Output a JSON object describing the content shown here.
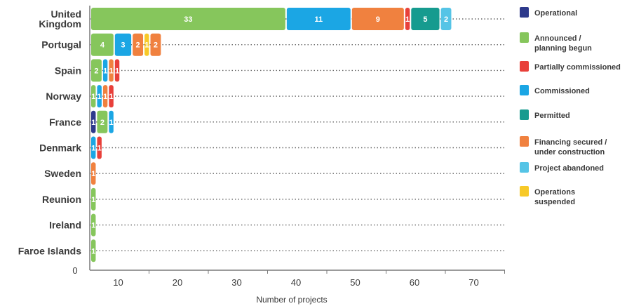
{
  "chart_data": {
    "type": "bar",
    "orientation": "horizontal",
    "stacked": true,
    "xlabel": "Number of projects",
    "xlim": [
      0,
      70
    ],
    "x_ticks": [
      10,
      20,
      30,
      40,
      50,
      60,
      70
    ],
    "y_zero_label": "0",
    "grid": "dotted horizontal",
    "legend_position": "right",
    "categories": [
      [
        "United",
        "Kingdom"
      ],
      [
        "Portugal"
      ],
      [
        "Spain"
      ],
      [
        "Norway"
      ],
      [
        "France"
      ],
      [
        "Denmark"
      ],
      [
        "Sweden"
      ],
      [
        "Reunion"
      ],
      [
        "Ireland"
      ],
      [
        "Faroe Islands"
      ]
    ],
    "legend": [
      {
        "key": "operational",
        "label": [
          "Operational"
        ],
        "color": "#2e3a8c"
      },
      {
        "key": "announced",
        "label": [
          "Announced /",
          "planning begun"
        ],
        "color": "#86c65c"
      },
      {
        "key": "partially",
        "label": [
          "Partially commissioned"
        ],
        "color": "#e8403a"
      },
      {
        "key": "commissioned",
        "label": [
          "Commissioned"
        ],
        "color": "#1ba6e4"
      },
      {
        "key": "permitted",
        "label": [
          "Permitted"
        ],
        "color": "#169b8f"
      },
      {
        "key": "financing",
        "label": [
          "Financing secured /",
          "under construction"
        ],
        "color": "#f0813f"
      },
      {
        "key": "abandoned",
        "label": [
          "Project abandoned"
        ],
        "color": "#55c4e6"
      },
      {
        "key": "suspended",
        "label": [
          "Operations",
          "suspended"
        ],
        "color": "#f7c928"
      }
    ],
    "rows": [
      [
        [
          "announced",
          33
        ],
        [
          "commissioned",
          11
        ],
        [
          "financing",
          9
        ],
        [
          "partially",
          1
        ],
        [
          "permitted",
          5
        ],
        [
          "abandoned",
          2
        ]
      ],
      [
        [
          "announced",
          4
        ],
        [
          "commissioned",
          3
        ],
        [
          "financing",
          2
        ],
        [
          "suspended",
          1
        ],
        [
          "financing",
          2
        ]
      ],
      [
        [
          "announced",
          2
        ],
        [
          "commissioned",
          1
        ],
        [
          "financing",
          1
        ],
        [
          "partially",
          1
        ]
      ],
      [
        [
          "announced",
          1
        ],
        [
          "commissioned",
          1
        ],
        [
          "financing",
          1
        ],
        [
          "partially",
          1
        ]
      ],
      [
        [
          "operational",
          1
        ],
        [
          "announced",
          2
        ],
        [
          "commissioned",
          1
        ]
      ],
      [
        [
          "commissioned",
          1
        ],
        [
          "partially",
          1
        ]
      ],
      [
        [
          "financing",
          1
        ]
      ],
      [
        [
          "announced",
          1
        ]
      ],
      [
        [
          "announced",
          1
        ]
      ],
      [
        [
          "announced",
          1
        ]
      ]
    ]
  }
}
